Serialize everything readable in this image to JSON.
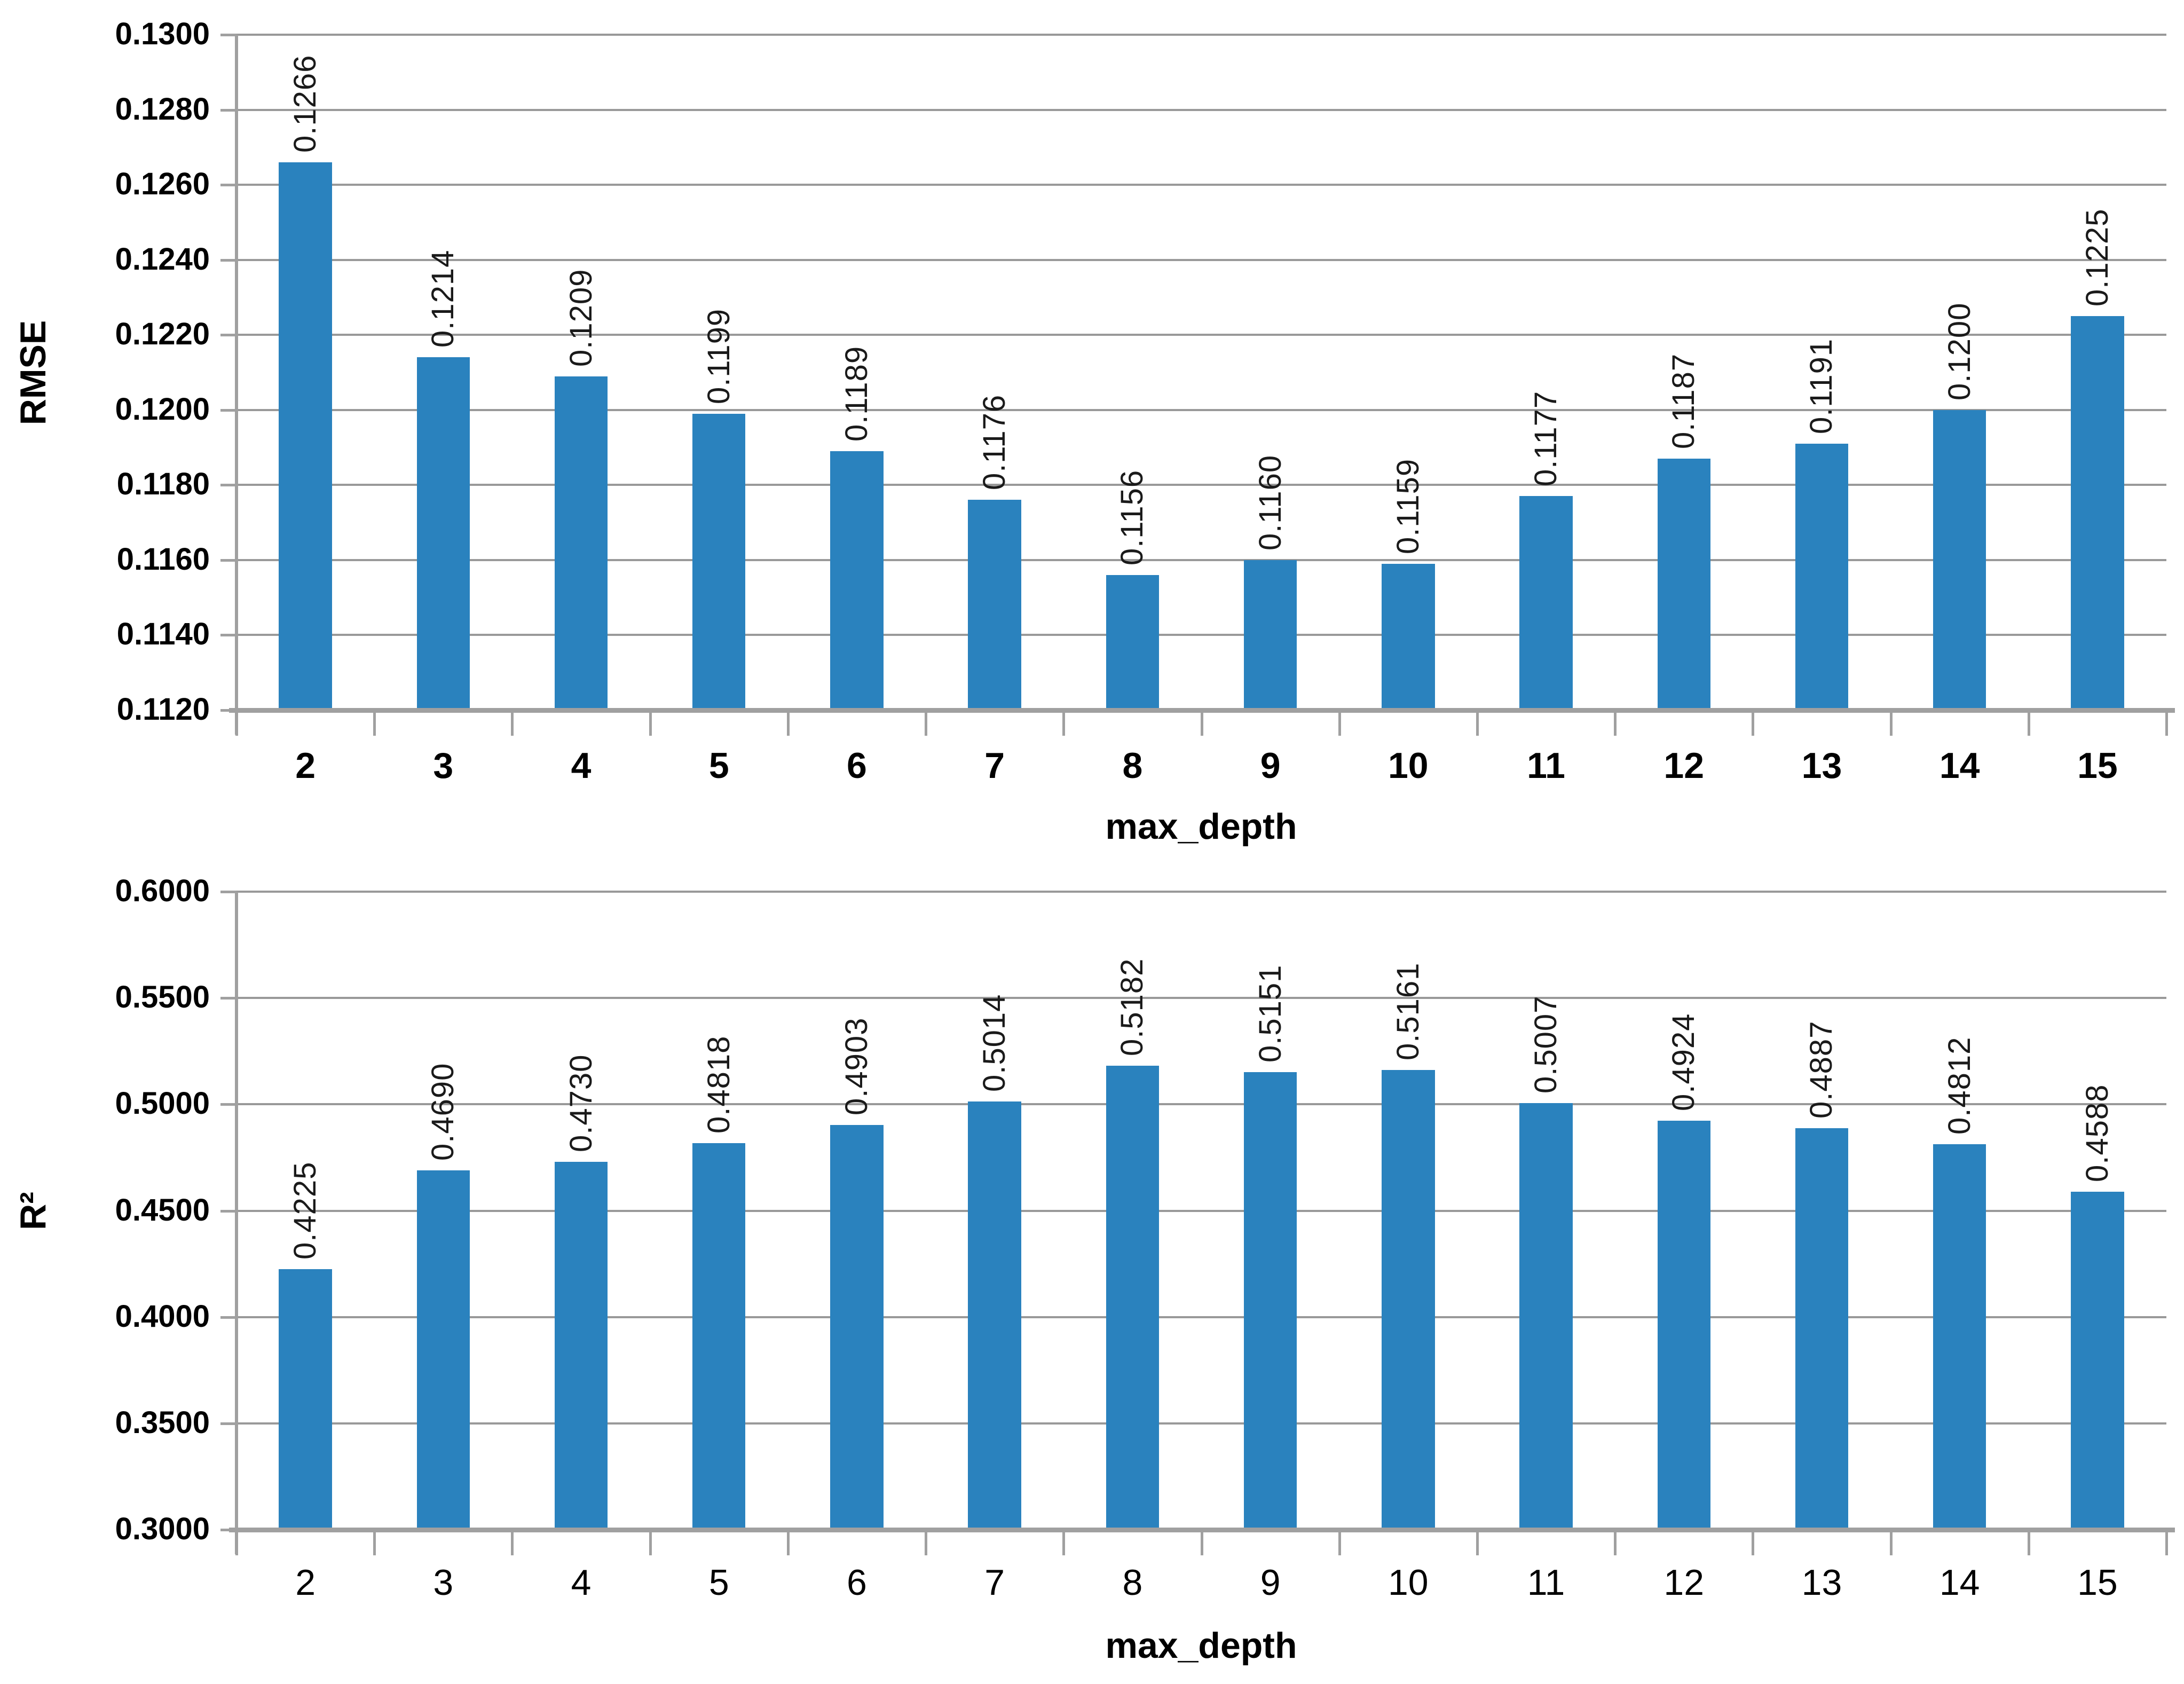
{
  "figure": {
    "bar_color": "#2A82BE",
    "gridline_color": "#999999",
    "axis_color": "#A0A0A0",
    "text_color": "#000000",
    "value_label_color": "#1A1A1A"
  },
  "chart_data": [
    {
      "type": "bar",
      "title": "",
      "ylabel": "RMSE",
      "xlabel": "max_depth",
      "legend": null,
      "grid": true,
      "categories": [
        "2",
        "3",
        "4",
        "5",
        "6",
        "7",
        "8",
        "9",
        "10",
        "11",
        "12",
        "13",
        "14",
        "15"
      ],
      "values": [
        0.1266,
        0.1214,
        0.1209,
        0.1199,
        0.1189,
        0.1176,
        0.1156,
        0.116,
        0.1159,
        0.1177,
        0.1187,
        0.1191,
        0.12,
        0.1225
      ],
      "value_labels": [
        "0.1266",
        "0.1214",
        "0.1209",
        "0.1199",
        "0.1189",
        "0.1176",
        "0.1156",
        "0.1160",
        "0.1159",
        "0.1177",
        "0.1187",
        "0.1191",
        "0.1200",
        "0.1225"
      ],
      "ylim": [
        0.112,
        0.13
      ],
      "ytick_step": 0.002,
      "ytick_labels": [
        "0.1300",
        "0.1280",
        "0.1260",
        "0.1240",
        "0.1220",
        "0.1200",
        "0.1180",
        "0.1160",
        "0.1140",
        "0.1120"
      ]
    },
    {
      "type": "bar",
      "title": "",
      "ylabel": "R²",
      "xlabel": "max_depth",
      "legend": null,
      "grid": true,
      "categories": [
        "2",
        "3",
        "4",
        "5",
        "6",
        "7",
        "8",
        "9",
        "10",
        "11",
        "12",
        "13",
        "14",
        "15"
      ],
      "values": [
        0.4225,
        0.469,
        0.473,
        0.4818,
        0.4903,
        0.5014,
        0.5182,
        0.5151,
        0.5161,
        0.5007,
        0.4924,
        0.4887,
        0.4812,
        0.4588
      ],
      "value_labels": [
        "0.4225",
        "0.4690",
        "0.4730",
        "0.4818",
        "0.4903",
        "0.5014",
        "0.5182",
        "0.5151",
        "0.5161",
        "0.5007",
        "0.4924",
        "0.4887",
        "0.4812",
        "0.4588"
      ],
      "ylim": [
        0.3,
        0.6
      ],
      "ytick_step": 0.05,
      "ytick_labels": [
        "0.6000",
        "0.5500",
        "0.5000",
        "0.4500",
        "0.4000",
        "0.3500",
        "0.3000"
      ]
    }
  ]
}
